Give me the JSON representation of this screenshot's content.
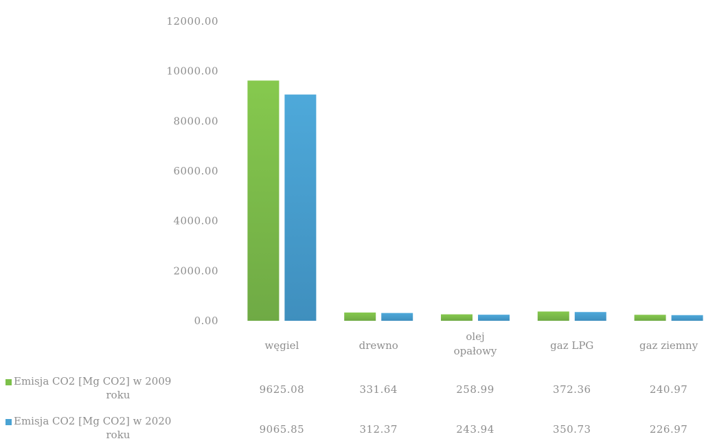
{
  "chart_data": {
    "type": "bar",
    "title": "",
    "xlabel": "",
    "ylabel": "",
    "ylim": [
      0,
      12000
    ],
    "yticks": [
      "0.00",
      "2000.00",
      "4000.00",
      "6000.00",
      "8000.00",
      "10000.00",
      "12000.00"
    ],
    "categories": [
      [
        "węgiel"
      ],
      [
        "drewno"
      ],
      [
        "olej",
        "opałowy"
      ],
      [
        "gaz LPG"
      ],
      [
        "gaz ziemny"
      ]
    ],
    "series": [
      {
        "name": [
          "Emisja CO2 [Mg CO2] w 2009",
          "roku"
        ],
        "color": "#7cc04a",
        "values": [
          9625.08,
          331.64,
          258.99,
          372.36,
          240.97
        ],
        "labels": [
          "9625.08",
          "331.64",
          "258.99",
          "372.36",
          "240.97"
        ]
      },
      {
        "name": [
          "Emisja CO2 [Mg CO2] w 2020",
          "roku"
        ],
        "color": "#4aa3d3",
        "values": [
          9065.85,
          312.37,
          243.94,
          350.73,
          226.97
        ],
        "labels": [
          "9065.85",
          "312.37",
          "243.94",
          "350.73",
          "226.97"
        ]
      }
    ],
    "data_table": true,
    "grid": false
  }
}
